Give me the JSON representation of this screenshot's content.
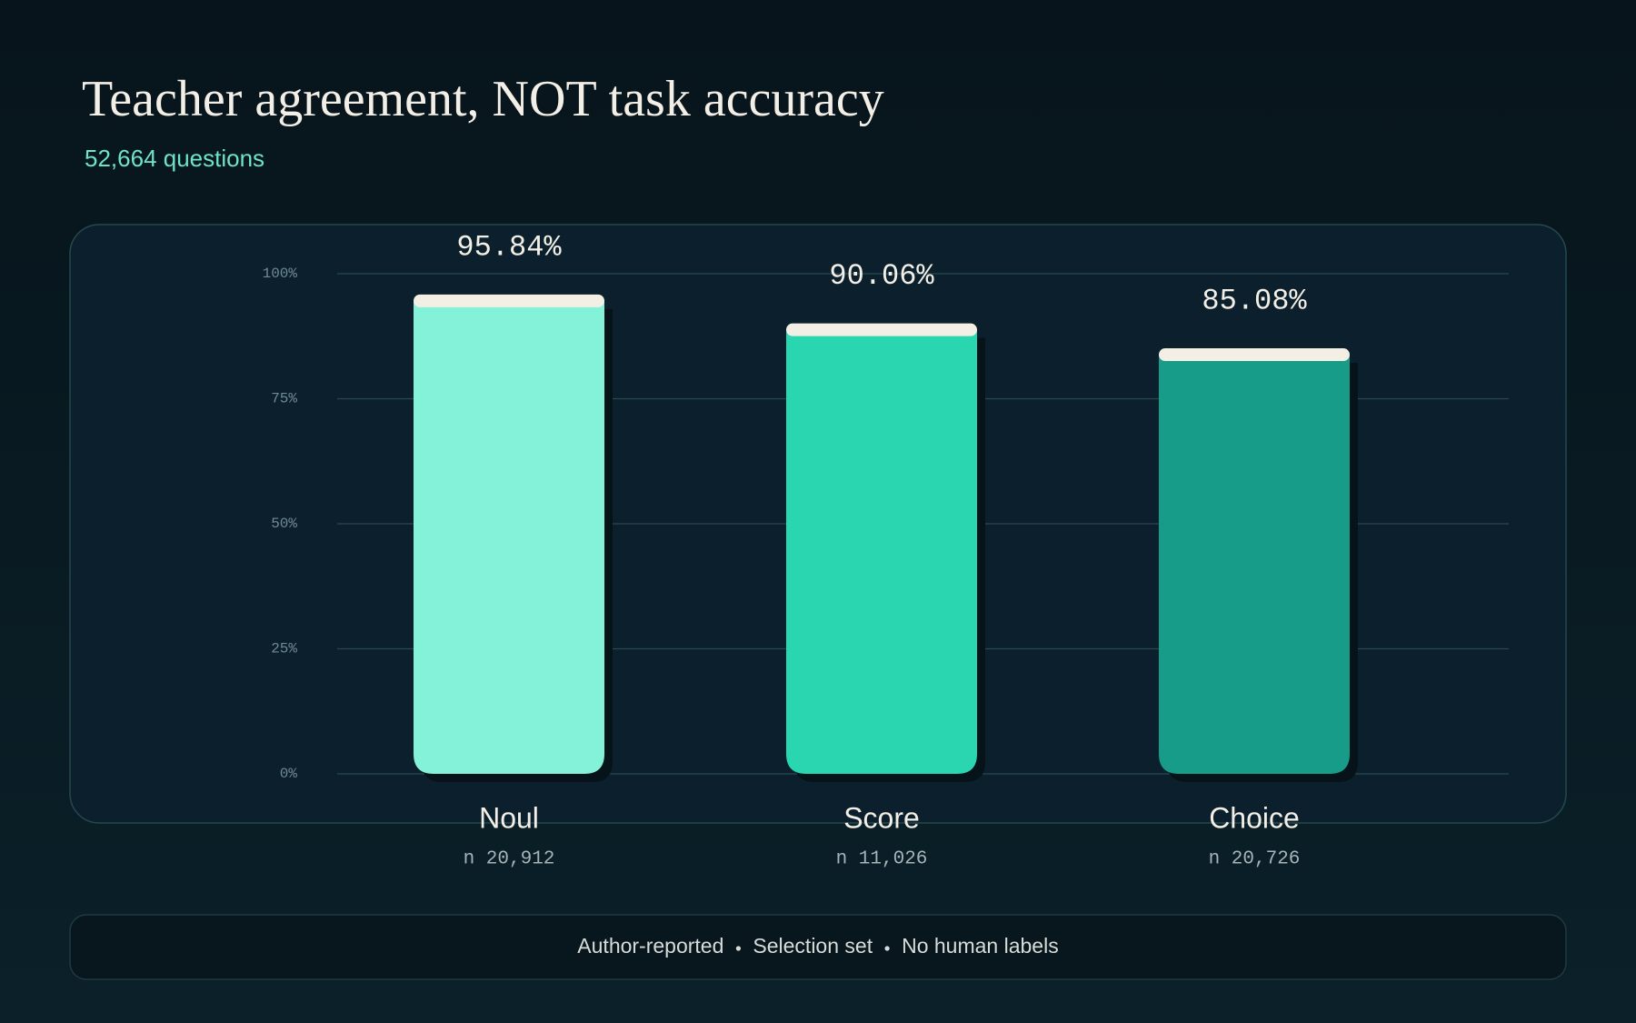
{
  "chart_data": {
    "type": "bar",
    "title": "Teacher agreement, NOT task accuracy",
    "subtitle": "52,664 questions",
    "categories": [
      "Noul",
      "Score",
      "Choice"
    ],
    "sample_labels": [
      "n 20,912",
      "n 11,026",
      "n 20,726"
    ],
    "values": [
      95.84,
      90.06,
      85.08
    ],
    "value_labels": [
      "95.84%",
      "90.06%",
      "85.08%"
    ],
    "colors": [
      "#83f2d8",
      "#29d6b0",
      "#179c89"
    ],
    "ylim": [
      0,
      100
    ],
    "yticks": [
      {
        "value": 0,
        "label": "0%"
      },
      {
        "value": 25,
        "label": "25%"
      },
      {
        "value": 50,
        "label": "50%"
      },
      {
        "value": 75,
        "label": "75%"
      },
      {
        "value": 100,
        "label": "100%"
      }
    ],
    "grid": true,
    "footnotes": [
      "Author-reported",
      "Selection set",
      "No human labels"
    ]
  }
}
